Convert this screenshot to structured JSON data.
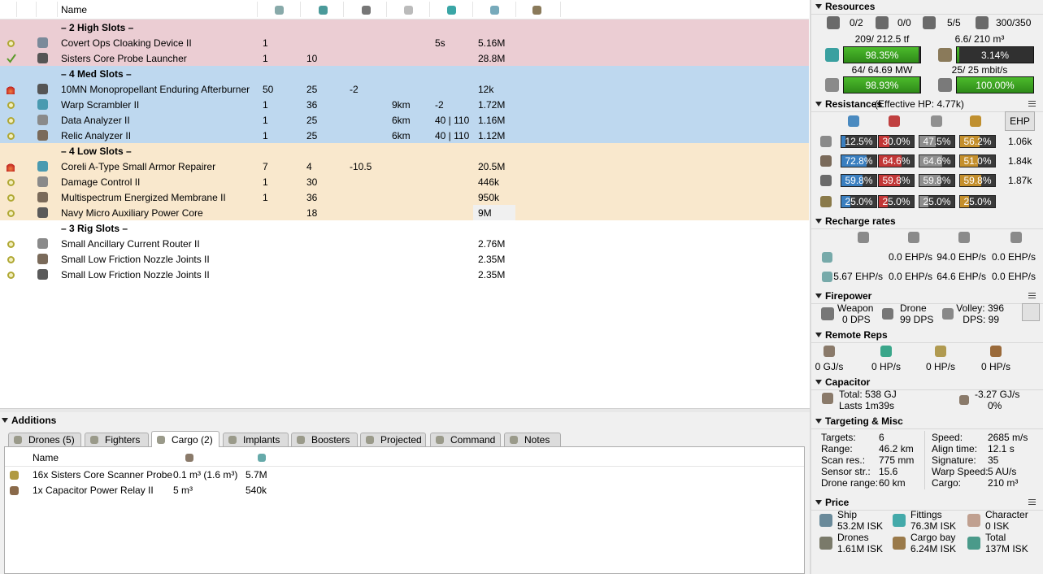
{
  "fitting": {
    "header": "Name",
    "sections": [
      {
        "title": "– 2 High Slots –",
        "rows": [
          {
            "name": "Covert Ops Cloaking Device II",
            "cells": [
              "1",
              null,
              null,
              null,
              "5s",
              "5.16M"
            ]
          },
          {
            "name": "Sisters Core Probe Launcher",
            "cells": [
              "1",
              "10",
              null,
              null,
              null,
              "28.8M"
            ]
          }
        ]
      },
      {
        "title": "– 4 Med Slots –",
        "rows": [
          {
            "name": "10MN Monopropellant Enduring Afterburner",
            "cells": [
              "50",
              "25",
              "-2",
              null,
              null,
              "12k"
            ]
          },
          {
            "name": "Warp Scrambler II",
            "cells": [
              "1",
              "36",
              null,
              "9km",
              "-2",
              "1.72M"
            ]
          },
          {
            "name": "Data Analyzer II",
            "cells": [
              "1",
              "25",
              null,
              "6km",
              "40 | 110",
              "1.16M"
            ]
          },
          {
            "name": "Relic Analyzer II",
            "cells": [
              "1",
              "25",
              null,
              "6km",
              "40 | 110",
              "1.12M"
            ]
          }
        ]
      },
      {
        "title": "– 4 Low Slots –",
        "rows": [
          {
            "name": "Coreli A-Type Small Armor Repairer",
            "cells": [
              "7",
              "4",
              "-10.5",
              null,
              null,
              "20.5M"
            ]
          },
          {
            "name": "Damage Control II",
            "cells": [
              "1",
              "30",
              null,
              null,
              null,
              "446k"
            ]
          },
          {
            "name": "Multispectrum Energized Membrane II",
            "cells": [
              "1",
              "36",
              null,
              null,
              null,
              "950k"
            ]
          },
          {
            "name": "Navy Micro Auxiliary Power Core",
            "cells": [
              null,
              "18",
              null,
              null,
              null,
              "9M"
            ]
          }
        ]
      },
      {
        "title": "– 3 Rig Slots –",
        "rows": [
          {
            "name": "Small Ancillary Current Router II",
            "cells": [
              null,
              null,
              null,
              null,
              null,
              "2.76M"
            ]
          },
          {
            "name": "Small Low Friction Nozzle Joints II",
            "cells": [
              null,
              null,
              null,
              null,
              null,
              "2.35M"
            ]
          },
          {
            "name": "Small Low Friction Nozzle Joints II",
            "cells": [
              null,
              null,
              null,
              null,
              null,
              "2.35M"
            ]
          }
        ]
      }
    ]
  },
  "additions": {
    "title": "Additions",
    "tabs": [
      "Drones (5)",
      "Fighters",
      "Cargo (2)",
      "Implants",
      "Boosters",
      "Projected",
      "Command",
      "Notes"
    ],
    "cargo": {
      "header": "Name",
      "rows": [
        {
          "name": "16x Sisters Core Scanner Probe",
          "volume": "0.1 m³ (1.6 m³)",
          "price": "5.7M"
        },
        {
          "name": "1x Capacitor Power Relay II",
          "volume": "5 m³",
          "price": "540k"
        }
      ]
    }
  },
  "resources": {
    "title": "Resources",
    "counts": [
      "0/2",
      "0/0",
      "5/5",
      "300/350"
    ],
    "meters": [
      {
        "label": "209/ 212.5 tf",
        "percent": "98.35%"
      },
      {
        "label": "6.6/ 210 m³",
        "percent": "3.14%"
      },
      {
        "label": "64/ 64.69 MW",
        "percent": "98.93%"
      },
      {
        "label": "25/ 25 mbit/s",
        "percent": "100.00%"
      }
    ]
  },
  "resistances": {
    "title": "Resistances",
    "effective_hp": "(Effective HP: 4.77k)",
    "button": "EHP",
    "rows": [
      {
        "values": [
          "12.5%",
          "30.0%",
          "47.5%",
          "56.2%"
        ],
        "ehp": "1.06k"
      },
      {
        "values": [
          "72.8%",
          "64.6%",
          "64.6%",
          "51.0%"
        ],
        "ehp": "1.84k"
      },
      {
        "values": [
          "59.8%",
          "59.8%",
          "59.8%",
          "59.8%"
        ],
        "ehp": "1.87k"
      },
      {
        "values": [
          "25.0%",
          "25.0%",
          "25.0%",
          "25.0%"
        ]
      }
    ]
  },
  "recharge": {
    "title": "Recharge rates",
    "rows": [
      [
        null,
        "0.0 EHP/s",
        "94.0 EHP/s",
        "0.0 EHP/s"
      ],
      [
        "5.67 EHP/s",
        "0.0 EHP/s",
        "64.6 EHP/s",
        "0.0 EHP/s"
      ]
    ]
  },
  "firepower": {
    "title": "Firepower",
    "weapon": {
      "label": "Weapon",
      "value": "0 DPS"
    },
    "drone": {
      "label": "Drone",
      "value": "99 DPS"
    },
    "volley": "Volley: 396",
    "dps": "DPS: 99"
  },
  "remote_reps": {
    "title": "Remote Reps",
    "values": [
      "0 GJ/s",
      "0 HP/s",
      "0 HP/s",
      "0 HP/s"
    ]
  },
  "capacitor": {
    "title": "Capacitor",
    "total": "Total: 538 GJ",
    "lasts": "Lasts 1m39s",
    "delta": "-3.27 GJ/s",
    "percent": "0%"
  },
  "targeting": {
    "title": "Targeting & Misc",
    "left": [
      [
        "Targets:",
        "6"
      ],
      [
        "Range:",
        "46.2 km"
      ],
      [
        "Scan res.:",
        "775 mm"
      ],
      [
        "Sensor str.:",
        "15.6"
      ],
      [
        "Drone range:",
        "60 km"
      ]
    ],
    "right": [
      [
        "Speed:",
        "2685 m/s"
      ],
      [
        "Align time:",
        "12.1 s"
      ],
      [
        "Signature:",
        "35"
      ],
      [
        "Warp Speed:",
        "5 AU/s"
      ],
      [
        "Cargo:",
        "210 m³"
      ]
    ]
  },
  "price": {
    "title": "Price",
    "items": [
      {
        "label": "Ship",
        "value": "53.2M ISK"
      },
      {
        "label": "Fittings",
        "value": "76.3M ISK"
      },
      {
        "label": "Character",
        "value": "0 ISK"
      },
      {
        "label": "Drones",
        "value": "1.61M ISK"
      },
      {
        "label": "Cargo bay",
        "value": "6.24M ISK"
      },
      {
        "label": "Total",
        "value": "137M ISK"
      }
    ]
  }
}
